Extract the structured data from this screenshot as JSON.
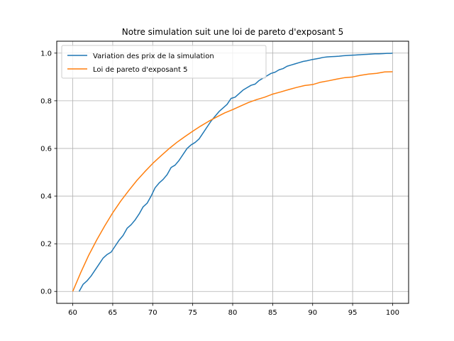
{
  "chart_data": {
    "type": "line",
    "title": "Notre simulation suit une loi de pareto d'exposant 5",
    "xlabel": "",
    "ylabel": "",
    "xlim": [
      58.0,
      102.0
    ],
    "ylim": [
      -0.05,
      1.05
    ],
    "xticks": [
      "60",
      "65",
      "70",
      "75",
      "80",
      "85",
      "90",
      "95",
      "100"
    ],
    "yticks": [
      "0.0",
      "0.2",
      "0.4",
      "0.6",
      "0.8",
      "1.0"
    ],
    "grid": true,
    "legend_position": "top-left",
    "series": [
      {
        "name": "Variation des prix de la simulation",
        "color": "#1f77b4",
        "x": [
          60.8,
          61.3,
          61.8,
          62.3,
          62.8,
          63.3,
          63.8,
          64.3,
          64.8,
          65.3,
          65.8,
          66.3,
          66.8,
          67.3,
          67.8,
          68.3,
          68.8,
          69.3,
          69.8,
          70.3,
          70.8,
          71.3,
          71.8,
          72.3,
          72.8,
          73.3,
          73.8,
          74.3,
          74.8,
          75.3,
          75.8,
          76.3,
          76.8,
          77.3,
          77.8,
          78.3,
          78.8,
          79.3,
          79.8,
          80.3,
          80.8,
          81.3,
          81.8,
          82.3,
          82.8,
          83.3,
          83.8,
          84.3,
          84.8,
          85.3,
          85.8,
          86.3,
          86.8,
          87.3,
          87.8,
          88.3,
          88.8,
          89.3,
          89.8,
          90.3,
          90.8,
          91.3,
          91.8,
          92.3,
          92.8,
          93.3,
          93.8,
          94.3,
          94.8,
          95.3,
          95.8,
          96.3,
          96.8,
          97.3,
          97.8,
          98.3,
          98.8,
          99.3,
          99.8,
          100.0
        ],
        "y": [
          0.0,
          0.03,
          0.045,
          0.065,
          0.09,
          0.115,
          0.14,
          0.155,
          0.165,
          0.19,
          0.215,
          0.235,
          0.265,
          0.28,
          0.3,
          0.325,
          0.355,
          0.37,
          0.4,
          0.435,
          0.455,
          0.47,
          0.49,
          0.52,
          0.53,
          0.55,
          0.575,
          0.6,
          0.615,
          0.625,
          0.64,
          0.665,
          0.69,
          0.715,
          0.735,
          0.755,
          0.77,
          0.785,
          0.81,
          0.815,
          0.83,
          0.845,
          0.855,
          0.865,
          0.87,
          0.885,
          0.895,
          0.905,
          0.915,
          0.92,
          0.93,
          0.935,
          0.945,
          0.95,
          0.955,
          0.96,
          0.965,
          0.968,
          0.972,
          0.975,
          0.978,
          0.982,
          0.984,
          0.985,
          0.986,
          0.987,
          0.989,
          0.99,
          0.991,
          0.992,
          0.993,
          0.994,
          0.995,
          0.996,
          0.997,
          0.997,
          0.998,
          0.999,
          0.999,
          1.0
        ]
      },
      {
        "name": "Loi de pareto d'exposant 5",
        "color": "#ff7f0e",
        "x": [
          60,
          61,
          62,
          63,
          64,
          65,
          66,
          67,
          68,
          69,
          70,
          71,
          72,
          73,
          74,
          75,
          76,
          77,
          78,
          79,
          80,
          81,
          82,
          83,
          84,
          85,
          86,
          87,
          88,
          89,
          90,
          91,
          92,
          93,
          94,
          95,
          96,
          97,
          98,
          99,
          100
        ],
        "y": [
          0.0,
          0.079,
          0.152,
          0.216,
          0.275,
          0.33,
          0.379,
          0.423,
          0.465,
          0.502,
          0.537,
          0.568,
          0.598,
          0.625,
          0.649,
          0.672,
          0.694,
          0.714,
          0.732,
          0.749,
          0.763,
          0.778,
          0.793,
          0.805,
          0.815,
          0.828,
          0.837,
          0.847,
          0.856,
          0.864,
          0.868,
          0.878,
          0.884,
          0.891,
          0.897,
          0.9,
          0.907,
          0.912,
          0.915,
          0.921,
          0.922
        ]
      }
    ]
  }
}
